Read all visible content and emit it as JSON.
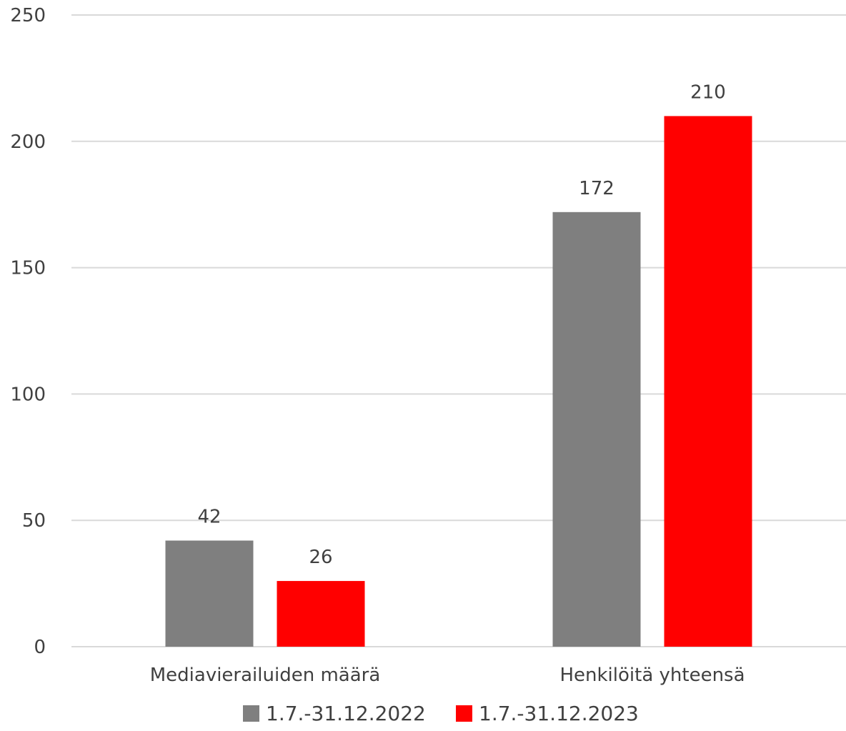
{
  "chart_data": {
    "type": "bar",
    "categories": [
      "Mediavierailuiden määrä",
      "Henkilöitä yhteensä"
    ],
    "series": [
      {
        "name": "1.7.-31.12.2022",
        "values": [
          42,
          172
        ],
        "color": "#7f7f7f"
      },
      {
        "name": "1.7.-31.12.2023",
        "values": [
          26,
          210
        ],
        "color": "#ff0000"
      }
    ],
    "yticks": [
      "0",
      "50",
      "100",
      "150",
      "200",
      "250"
    ],
    "ylim": [
      0,
      250
    ],
    "grid": true,
    "legend_position": "bottom",
    "data_labels": true
  }
}
